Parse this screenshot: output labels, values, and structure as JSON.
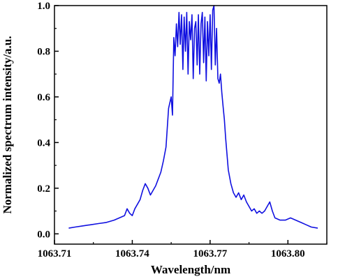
{
  "chart_data": {
    "type": "line",
    "title": "",
    "xlabel": "Wavelength/nm",
    "ylabel": "Normalized spectrum intensity/a.u.",
    "xlim": [
      1063.71,
      1063.815
    ],
    "ylim": [
      -0.045,
      1.0
    ],
    "x_ticks": [
      1063.71,
      1063.74,
      1063.77,
      1063.8
    ],
    "x_tick_labels": [
      "1063.71",
      "1063.74",
      "1063.77",
      "1063.80"
    ],
    "y_ticks": [
      0.0,
      0.2,
      0.4,
      0.6,
      0.8,
      1.0
    ],
    "y_tick_labels": [
      "0.0",
      "0.2",
      "0.4",
      "0.6",
      "0.8",
      "1.0"
    ],
    "grid": false,
    "legend": "none",
    "series": [
      {
        "color": "#1010e0",
        "x": [
          1063.7155,
          1063.718,
          1063.721,
          1063.724,
          1063.727,
          1063.73,
          1063.733,
          1063.735,
          1063.737,
          1063.738,
          1063.739,
          1063.74,
          1063.741,
          1063.742,
          1063.743,
          1063.744,
          1063.745,
          1063.746,
          1063.747,
          1063.748,
          1063.749,
          1063.75,
          1063.751,
          1063.752,
          1063.753,
          1063.754,
          1063.755,
          1063.7555,
          1063.756,
          1063.7565,
          1063.757,
          1063.7575,
          1063.758,
          1063.7585,
          1063.759,
          1063.7595,
          1063.76,
          1063.7605,
          1063.761,
          1063.7615,
          1063.762,
          1063.7625,
          1063.763,
          1063.7635,
          1063.764,
          1063.7645,
          1063.765,
          1063.7655,
          1063.766,
          1063.7665,
          1063.767,
          1063.7675,
          1063.768,
          1063.7685,
          1063.769,
          1063.7695,
          1063.77,
          1063.7705,
          1063.771,
          1063.7715,
          1063.772,
          1063.7725,
          1063.773,
          1063.7735,
          1063.774,
          1063.7745,
          1063.775,
          1063.7755,
          1063.776,
          1063.7765,
          1063.777,
          1063.778,
          1063.779,
          1063.78,
          1063.781,
          1063.782,
          1063.783,
          1063.784,
          1063.785,
          1063.786,
          1063.787,
          1063.788,
          1063.789,
          1063.79,
          1063.791,
          1063.792,
          1063.793,
          1063.794,
          1063.795,
          1063.797,
          1063.799,
          1063.801,
          1063.803,
          1063.805,
          1063.807,
          1063.809,
          1063.8115
        ],
        "y": [
          0.025,
          0.03,
          0.035,
          0.04,
          0.045,
          0.05,
          0.06,
          0.07,
          0.08,
          0.11,
          0.09,
          0.08,
          0.11,
          0.13,
          0.15,
          0.19,
          0.22,
          0.2,
          0.17,
          0.19,
          0.21,
          0.24,
          0.27,
          0.32,
          0.38,
          0.55,
          0.6,
          0.52,
          0.86,
          0.78,
          0.92,
          0.82,
          0.97,
          0.83,
          0.96,
          0.72,
          0.95,
          0.8,
          0.97,
          0.7,
          0.93,
          0.85,
          0.96,
          0.68,
          0.9,
          0.93,
          0.74,
          0.96,
          0.7,
          0.92,
          0.97,
          0.75,
          0.95,
          0.67,
          0.93,
          0.78,
          0.96,
          0.72,
          0.98,
          1.0,
          0.74,
          0.9,
          0.68,
          0.66,
          0.7,
          0.62,
          0.56,
          0.5,
          0.42,
          0.35,
          0.28,
          0.22,
          0.18,
          0.16,
          0.18,
          0.15,
          0.17,
          0.14,
          0.12,
          0.1,
          0.11,
          0.09,
          0.1,
          0.09,
          0.1,
          0.12,
          0.14,
          0.1,
          0.07,
          0.06,
          0.06,
          0.07,
          0.06,
          0.05,
          0.04,
          0.03,
          0.025
        ]
      }
    ]
  }
}
